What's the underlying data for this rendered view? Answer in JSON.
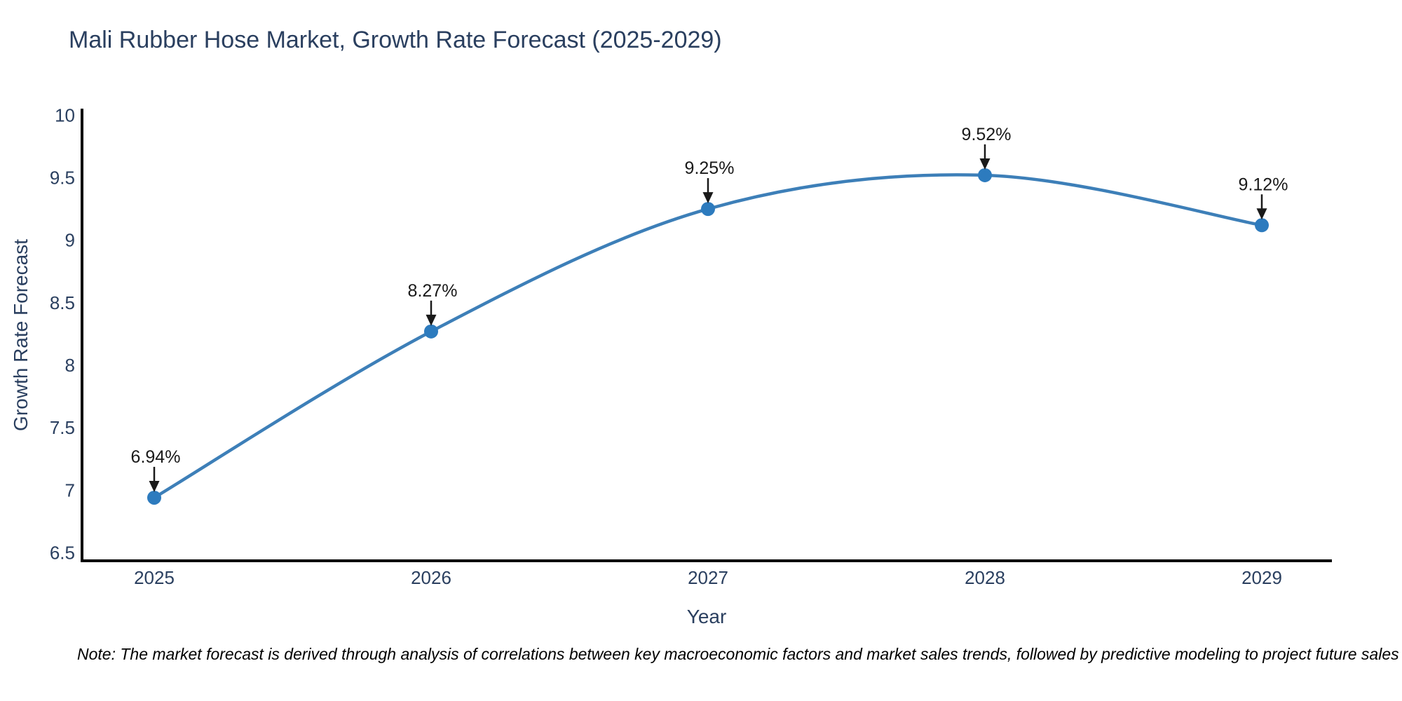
{
  "chart_data": {
    "type": "line",
    "title": "Mali Rubber Hose Market, Growth Rate Forecast (2025-2029)",
    "xlabel": "Year",
    "ylabel": "Growth Rate Forecast",
    "x": [
      "2025",
      "2026",
      "2027",
      "2028",
      "2029"
    ],
    "values": [
      6.94,
      8.27,
      9.25,
      9.52,
      9.12
    ],
    "point_labels": [
      "6.94%",
      "8.27%",
      "9.25%",
      "9.52%",
      "9.12%"
    ],
    "yticks": [
      6.5,
      7,
      7.5,
      8,
      8.5,
      9,
      9.5,
      10
    ],
    "ytick_labels": [
      "6.5",
      "7",
      "7.5",
      "8",
      "8.5",
      "9",
      "9.5",
      "10"
    ],
    "ylim": [
      6.435,
      10.05
    ],
    "line_shape": "spline",
    "grid": false,
    "legend": "none",
    "annotation_style": "value-label-with-down-arrow"
  },
  "note": {
    "text": "Note: The market forecast is derived through analysis of correlations between key macroeconomic factors and market sales trends, followed by predictive modeling to project future sales"
  },
  "colors": {
    "background": "#ffffff",
    "title_text": "#2a3f5f",
    "axis_text": "#2a3f5f",
    "axis_line": "#000000",
    "line": "#3d7fb8",
    "marker": "#2d7bbe",
    "annotation": "#1a1a1a",
    "note_text": "#000000"
  }
}
